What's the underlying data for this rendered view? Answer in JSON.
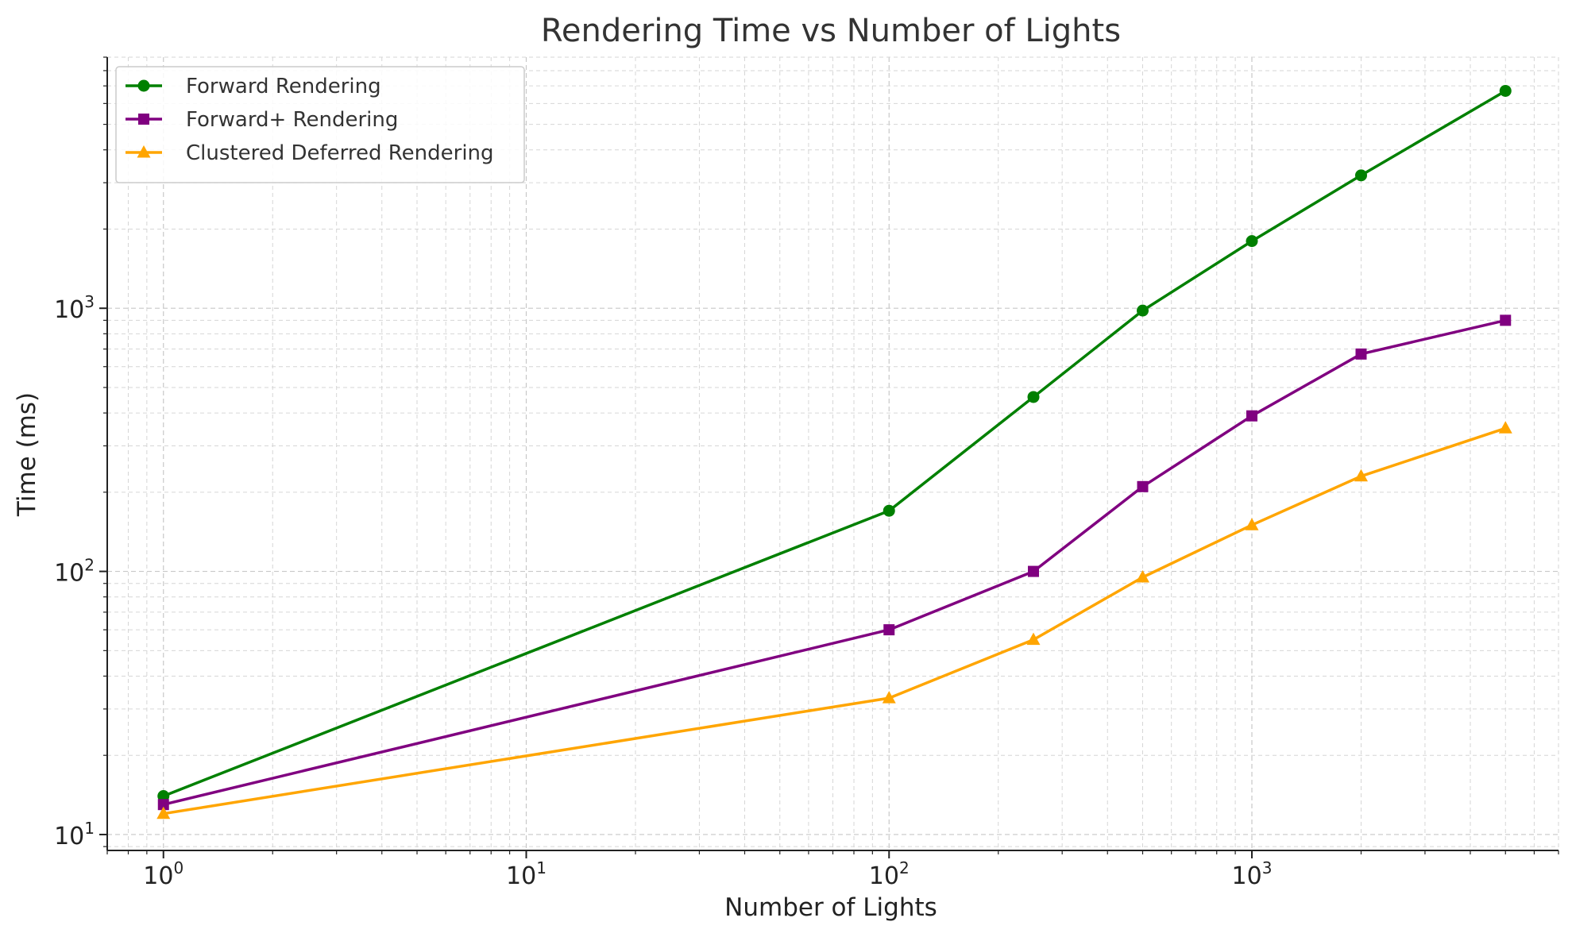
{
  "chart_data": {
    "type": "line",
    "title": "Rendering Time vs Number of Lights",
    "xlabel": "Number of Lights",
    "ylabel": "Time (ms)",
    "x_scale": "log",
    "y_scale": "log",
    "xlim": [
      0.7,
      7000
    ],
    "ylim": [
      8.7,
      9000
    ],
    "x_ticks": [
      {
        "base": "10",
        "exp": "0",
        "value": 1
      },
      {
        "base": "10",
        "exp": "1",
        "value": 10
      },
      {
        "base": "10",
        "exp": "2",
        "value": 100
      },
      {
        "base": "10",
        "exp": "3",
        "value": 1000
      }
    ],
    "y_ticks": [
      {
        "base": "10",
        "exp": "1",
        "value": 10
      },
      {
        "base": "10",
        "exp": "2",
        "value": 100
      },
      {
        "base": "10",
        "exp": "3",
        "value": 1000
      }
    ],
    "grid": true,
    "legend_position": "top-left",
    "x": [
      1,
      100,
      250,
      500,
      1000,
      2000,
      5000
    ],
    "series": [
      {
        "name": "Forward Rendering",
        "color": "#008000",
        "marker": "circle",
        "values": [
          14,
          170,
          460,
          980,
          1800,
          3200,
          6700
        ]
      },
      {
        "name": "Forward+ Rendering",
        "color": "#800080",
        "marker": "square",
        "values": [
          13,
          60,
          100,
          210,
          390,
          670,
          900
        ]
      },
      {
        "name": "Clustered Deferred Rendering",
        "color": "#FFA500",
        "marker": "triangle",
        "values": [
          12,
          33,
          55,
          95,
          150,
          230,
          350
        ]
      }
    ]
  }
}
